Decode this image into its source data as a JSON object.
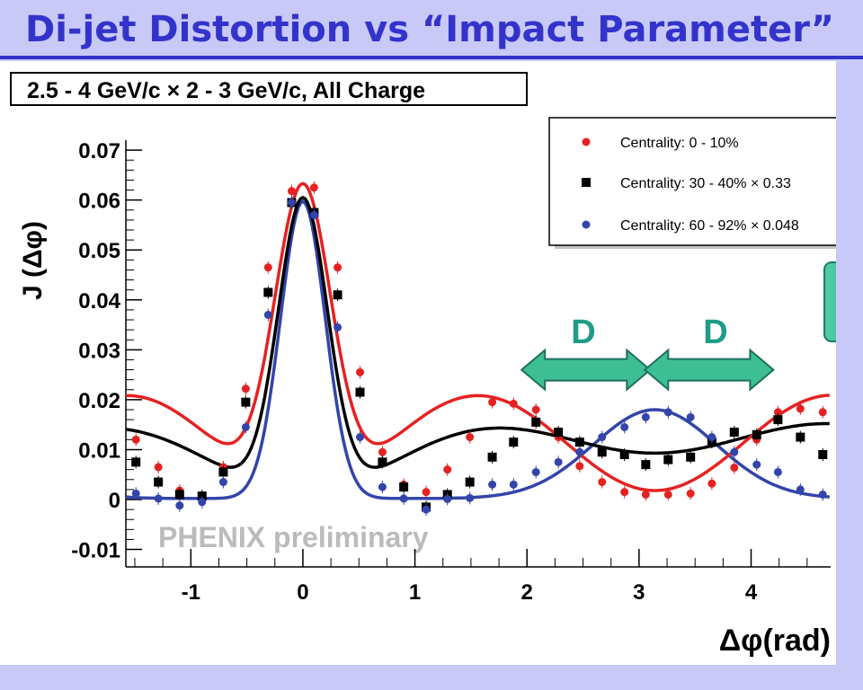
{
  "slide": {
    "title": "Di-jet Distortion vs “Impact Parameter”"
  },
  "chart_data": {
    "type": "scatter",
    "title": "2.5 - 4 GeV/c × 2 - 3 GeV/c,  All Charge",
    "xlabel": "Δφ(rad)",
    "ylabel": "J (Δφ)",
    "watermark": "PHENIX preliminary",
    "xlim": [
      -1.58,
      4.71
    ],
    "ylim": [
      -0.0135,
      0.072
    ],
    "xticks": [
      -1,
      0,
      1,
      2,
      3,
      4
    ],
    "yticks": [
      -0.01,
      0,
      0.01,
      0.02,
      0.03,
      0.04,
      0.05,
      0.06,
      0.07
    ],
    "xtick_labels": [
      "-1",
      "0",
      "1",
      "2",
      "3",
      "4"
    ],
    "ytick_labels": [
      "-0.01",
      "0",
      "0.01",
      "0.02",
      "0.03",
      "0.04",
      "0.05",
      "0.06",
      "0.07"
    ],
    "annotations": [
      {
        "label": "D",
        "x_from": 2.0,
        "x_to": 3.1,
        "y": 0.026
      },
      {
        "label": "D",
        "x_from": 3.1,
        "x_to": 4.2,
        "y": 0.026
      }
    ],
    "legend_position": "top-right",
    "series": [
      {
        "name": "Centrality:  0 - 10%",
        "color": "#e52222",
        "marker": "circle",
        "x": [
          -1.49,
          -1.29,
          -1.1,
          -0.9,
          -0.71,
          -0.51,
          -0.31,
          -0.1,
          0.1,
          0.31,
          0.51,
          0.71,
          0.9,
          1.1,
          1.29,
          1.49,
          1.69,
          1.88,
          2.08,
          2.28,
          2.47,
          2.67,
          2.87,
          3.06,
          3.26,
          3.46,
          3.65,
          3.85,
          4.05,
          4.24,
          4.44,
          4.64
        ],
        "values": [
          0.012,
          0.0065,
          0.0018,
          0.0005,
          0.0065,
          0.0222,
          0.0465,
          0.0618,
          0.0625,
          0.0465,
          0.0255,
          0.0095,
          0.003,
          0.0015,
          0.006,
          0.0125,
          0.0195,
          0.0192,
          0.018,
          0.0125,
          0.0067,
          0.0035,
          0.0015,
          0.001,
          0.001,
          0.0012,
          0.0032,
          0.0064,
          0.012,
          0.0175,
          0.0182,
          0.0175
        ],
        "fit": {
          "a": 0.0023,
          "b": 0.061,
          "s0": 0.25,
          "c": 0.0093,
          "cos1": 0.0005,
          "cos2": -0.0093,
          "s1": 0.0
        }
      },
      {
        "name": "Centrality: 30 - 40% × 0.33",
        "color": "#000000",
        "marker": "square",
        "x": [
          -1.49,
          -1.29,
          -1.1,
          -0.9,
          -0.71,
          -0.51,
          -0.31,
          -0.1,
          0.1,
          0.31,
          0.51,
          0.71,
          0.9,
          1.1,
          1.29,
          1.49,
          1.69,
          1.88,
          2.08,
          2.28,
          2.47,
          2.67,
          2.87,
          3.06,
          3.26,
          3.46,
          3.65,
          3.85,
          4.05,
          4.24,
          4.44,
          4.64
        ],
        "values": [
          0.0075,
          0.0035,
          0.001,
          0.0007,
          0.0055,
          0.0195,
          0.0415,
          0.0595,
          0.0575,
          0.041,
          0.0215,
          0.0075,
          0.0025,
          -0.0015,
          0.001,
          0.0035,
          0.0085,
          0.0115,
          0.0155,
          0.0135,
          0.0115,
          0.0095,
          0.009,
          0.007,
          0.008,
          0.0085,
          0.0115,
          0.0135,
          0.013,
          0.016,
          0.0125,
          0.009
        ],
        "fit": {
          "a": 0.0015,
          "b": 0.059,
          "s0": 0.22,
          "c": 0.0105,
          "cos1": -0.0005,
          "cos2": -0.0032,
          "s1": 0.0
        }
      },
      {
        "name": "Centrality: 60 - 92% × 0.048",
        "color": "#3344aa",
        "marker": "circle",
        "x": [
          -1.49,
          -1.29,
          -1.1,
          -0.9,
          -0.71,
          -0.51,
          -0.31,
          -0.1,
          0.1,
          0.31,
          0.51,
          0.71,
          0.9,
          1.1,
          1.29,
          1.49,
          1.69,
          1.88,
          2.08,
          2.28,
          2.47,
          2.67,
          2.87,
          3.06,
          3.26,
          3.46,
          3.65,
          3.85,
          4.05,
          4.24,
          4.44,
          4.64
        ],
        "values": [
          0.0012,
          0.0002,
          -0.0012,
          -0.0005,
          0.0035,
          0.0145,
          0.037,
          0.0595,
          0.057,
          0.0345,
          0.0125,
          0.0025,
          0.0002,
          -0.002,
          0.0001,
          0.0003,
          0.003,
          0.003,
          0.0055,
          0.0075,
          0.0095,
          0.0125,
          0.0145,
          0.0165,
          0.0175,
          0.0165,
          0.0125,
          0.0095,
          0.007,
          0.0055,
          0.002,
          0.001
        ],
        "fit": {
          "a": 0.0002,
          "b": 0.0595,
          "s0": 0.2,
          "c": 0.0,
          "cos1": 0.0,
          "cos2": 0.0,
          "s1": 0.55,
          "b1": 0.0178
        }
      }
    ]
  }
}
